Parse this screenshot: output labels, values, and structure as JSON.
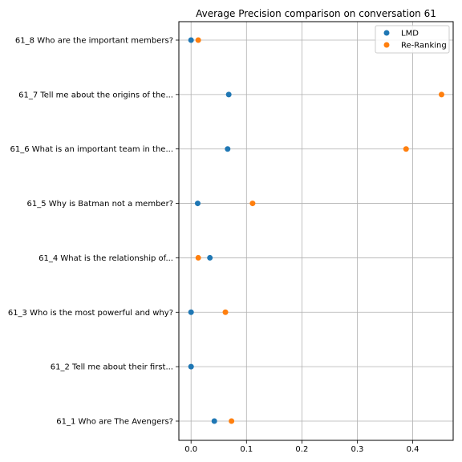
{
  "chart_data": {
    "type": "scatter",
    "title": "Average Precision comparison on conversation 61",
    "xlabel": "",
    "ylabel": "",
    "xlim": [
      -0.022,
      0.473
    ],
    "xticks": [
      0.0,
      0.1,
      0.2,
      0.3,
      0.4
    ],
    "xtick_labels": [
      "0.0",
      "0.1",
      "0.2",
      "0.3",
      "0.4"
    ],
    "categories": [
      "61_1 Who are The Avengers?",
      "61_2 Tell me about their first...",
      "61_3 Who is the most powerful and why?",
      "61_4 What is the relationship of...",
      "61_5 Why is Batman not a member?",
      "61_6 What is an important team in the...",
      "61_7 Tell me about the origins of the...",
      "61_8 Who are the important members?"
    ],
    "series": [
      {
        "name": "LMD",
        "color": "#1f77b4",
        "values": [
          0.042,
          0.0,
          0.0,
          0.034,
          0.012,
          0.066,
          0.068,
          0.0
        ]
      },
      {
        "name": "Re-Ranking",
        "color": "#ff7f0e",
        "values": [
          0.073,
          null,
          0.062,
          0.013,
          0.111,
          0.388,
          0.452,
          0.013
        ]
      }
    ],
    "grid": true,
    "legend_position": "top-right"
  }
}
